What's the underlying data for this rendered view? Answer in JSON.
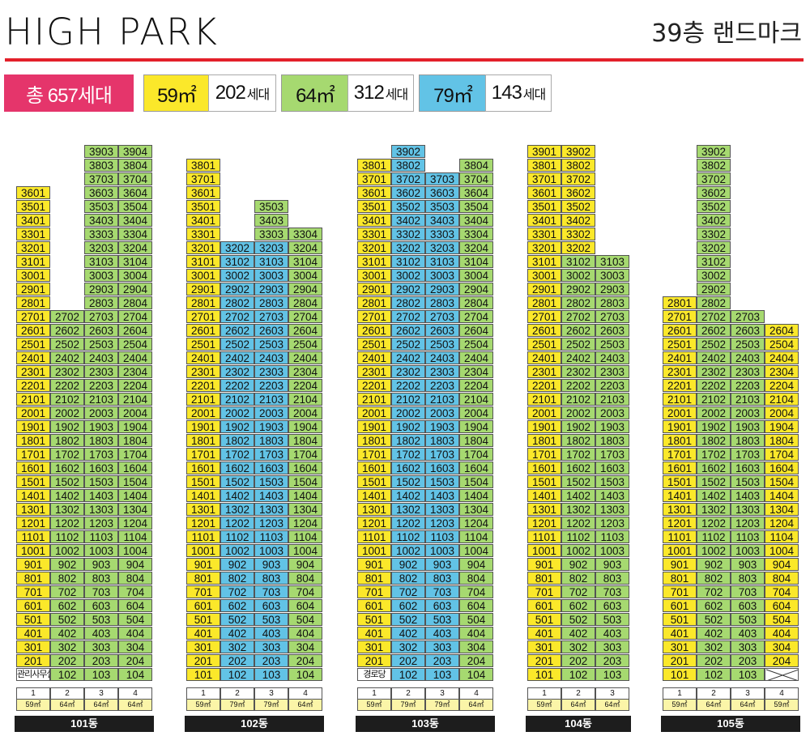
{
  "header": {
    "logo": "HIGH PARK",
    "landmark": "39층 랜드마크",
    "accent_color": "#e3202a"
  },
  "summary": {
    "total": "총 657세대",
    "types": [
      {
        "area": "59㎡",
        "count": "202",
        "unit": "세대",
        "color": "#fbe82a"
      },
      {
        "area": "64㎡",
        "count": "312",
        "unit": "세대",
        "color": "#a6d970"
      },
      {
        "area": "79㎡",
        "count": "143",
        "unit": "세대",
        "color": "#62c3e6"
      }
    ]
  },
  "colors": {
    "59": "#fbe82a",
    "64": "#a6d970",
    "79": "#62c3e6"
  },
  "buildings": [
    {
      "name": "101동",
      "line_numbers": [
        "1",
        "2",
        "3",
        "4"
      ],
      "line_types": [
        "59㎡",
        "64㎡",
        "64㎡",
        "64㎡"
      ],
      "lines": [
        {
          "area": "59",
          "top_floor": 36
        },
        {
          "area": "64",
          "top_floor": 27
        },
        {
          "area": "64",
          "top_floor": 39
        },
        {
          "area": "64",
          "top_floor": 39
        }
      ],
      "ground": [
        "관리사무실",
        "102",
        "103",
        "104"
      ]
    },
    {
      "name": "102동",
      "line_numbers": [
        "1",
        "2",
        "3",
        "4"
      ],
      "line_types": [
        "59㎡",
        "79㎡",
        "79㎡",
        "64㎡"
      ],
      "lines": [
        {
          "area": "59",
          "top_floor": 38
        },
        {
          "area": "79",
          "top_floor": 32
        },
        {
          "area": "79",
          "top_floor": 35,
          "top_area": "64",
          "top_from": 33
        },
        {
          "area": "64",
          "top_floor": 33
        }
      ],
      "ground": [
        "101",
        "102",
        "103",
        "104"
      ]
    },
    {
      "name": "103동",
      "line_numbers": [
        "1",
        "2",
        "3",
        "4"
      ],
      "line_types": [
        "59㎡",
        "79㎡",
        "79㎡",
        "64㎡"
      ],
      "lines": [
        {
          "area": "59",
          "top_floor": 38
        },
        {
          "area": "79",
          "top_floor": 39
        },
        {
          "area": "79",
          "top_floor": 37
        },
        {
          "area": "64",
          "top_floor": 38
        }
      ],
      "ground": [
        "경로당",
        "102",
        "103",
        "104"
      ]
    },
    {
      "name": "104동",
      "line_numbers": [
        "1",
        "2",
        "3"
      ],
      "line_types": [
        "59㎡",
        "64㎡",
        "64㎡"
      ],
      "lines": [
        {
          "area": "59",
          "top_floor": 39
        },
        {
          "area": "64",
          "top_floor": 39,
          "top_area": "59",
          "top_from": 32
        },
        {
          "area": "64",
          "top_floor": 31
        }
      ],
      "ground": [
        "101",
        "102",
        "103"
      ]
    },
    {
      "name": "105동",
      "line_numbers": [
        "1",
        "2",
        "3",
        "4"
      ],
      "line_types": [
        "59㎡",
        "64㎡",
        "64㎡",
        "59㎡"
      ],
      "lines": [
        {
          "area": "59",
          "top_floor": 28
        },
        {
          "area": "64",
          "top_floor": 39
        },
        {
          "area": "64",
          "top_floor": 27
        },
        {
          "area": "59",
          "top_floor": 26
        }
      ],
      "ground": [
        "101",
        "102",
        "103",
        ""
      ]
    }
  ]
}
